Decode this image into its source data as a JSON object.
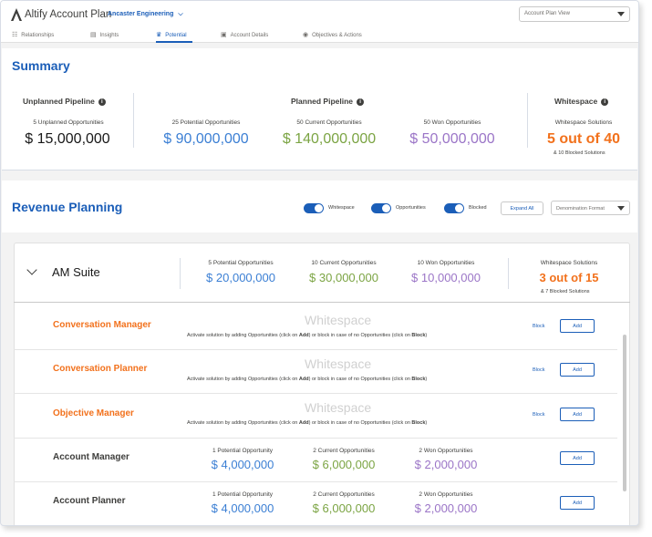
{
  "header": {
    "app_title": "Altify Account Plan",
    "account_name": "Ancaster Engineering",
    "view_select": "Account Plan View"
  },
  "tabs": [
    {
      "label": "Relationships",
      "icon": "relationships-icon",
      "active": false
    },
    {
      "label": "Insights",
      "icon": "insights-icon",
      "active": false
    },
    {
      "label": "Potential",
      "icon": "crown-icon",
      "active": true
    },
    {
      "label": "Account Details",
      "icon": "clipboard-icon",
      "active": false
    },
    {
      "label": "Objectives & Actions",
      "icon": "target-icon",
      "active": false
    }
  ],
  "summary": {
    "title": "Summary",
    "unplanned": {
      "title": "Unplanned Pipeline",
      "label": "5 Unplanned Opportunities",
      "value": "$ 15,000,000"
    },
    "planned": {
      "title": "Planned Pipeline",
      "potential": {
        "label": "25 Potential Opportunities",
        "value": "$ 90,000,000"
      },
      "current": {
        "label": "50 Current Opportunities",
        "value": "$ 140,000,000"
      },
      "won": {
        "label": "50 Won Opportunities",
        "value": "$ 50,000,000"
      }
    },
    "whitespace": {
      "title": "Whitespace",
      "label": "Whitespace Solutions",
      "value": "5 out of 40",
      "note": "& 10 Blocked Solutions"
    }
  },
  "revenue_planning": {
    "title": "Revenue Planning",
    "toggles": [
      {
        "label": "Whitespace",
        "on": true
      },
      {
        "label": "Opportunities",
        "on": true
      },
      {
        "label": "Blocked",
        "on": true
      }
    ],
    "expand_all": "Expand All",
    "denomination": "Denomination Format"
  },
  "suite": {
    "name": "AM Suite",
    "potential": {
      "label": "5 Potential Opportunities",
      "value": "$ 20,000,000"
    },
    "current": {
      "label": "10 Current Opportunities",
      "value": "$ 30,000,000"
    },
    "won": {
      "label": "10 Won Opportunities",
      "value": "$ 10,000,000"
    },
    "whitespace": {
      "label": "Whitespace Solutions",
      "value": "3 out of 15",
      "note": "& 7 Blocked Solutions"
    }
  },
  "whitespace_text": {
    "title": "Whitespace",
    "desc_1": "Activate solution by adding Opportunities (click on ",
    "desc_add": "Add",
    "desc_2": ") or block in case of no Opportunities (click on ",
    "desc_block": "Block",
    "desc_3": ")"
  },
  "actions": {
    "block": "Block",
    "add": "Add"
  },
  "solutions": [
    {
      "name": "Conversation Manager",
      "type": "whitespace"
    },
    {
      "name": "Conversation Planner",
      "type": "whitespace"
    },
    {
      "name": "Objective Manager",
      "type": "whitespace"
    },
    {
      "name": "Account Manager",
      "type": "opportunities",
      "potential": {
        "label": "1 Potential Opportunity",
        "value": "$ 4,000,000"
      },
      "current": {
        "label": "2 Current Opportunities",
        "value": "$ 6,000,000"
      },
      "won": {
        "label": "2 Won Opportunities",
        "value": "$ 2,000,000"
      }
    },
    {
      "name": "Account Planner",
      "type": "opportunities",
      "potential": {
        "label": "1 Potential Opportunity",
        "value": "$ 4,000,000"
      },
      "current": {
        "label": "2 Current Opportunities",
        "value": "$ 6,000,000"
      },
      "won": {
        "label": "2 Won Opportunities",
        "value": "$ 2,000,000"
      }
    }
  ]
}
